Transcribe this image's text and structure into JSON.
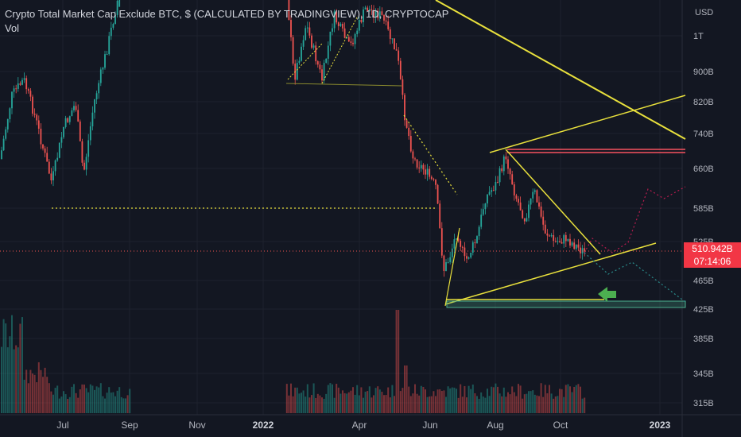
{
  "header": {
    "title": "Crypto Total Market Cap Exclude BTC, $ (CALCULATED BY TRADINGVIEW), 1D, CRYPTOCAP",
    "indicator": "Vol"
  },
  "price_badge": {
    "value": "510.942B",
    "countdown": "07:14:06"
  },
  "colors": {
    "background": "#131722",
    "up": "#26a69a",
    "down": "#ef5350",
    "trendline": "#e8e03c",
    "resistance": "#f7525f",
    "support_zone": "#4caf8f",
    "arrow": "#4caf50",
    "projection_red": "#b71c4f",
    "projection_teal": "#2a8b8b"
  },
  "chart_data": {
    "type": "candlestick",
    "title": "Crypto Total Market Cap Exclude BTC, $ (CALCULATED BY TRADINGVIEW), 1D, CRYPTOCAP",
    "currency": "USD",
    "y_scale": "log",
    "y_ticks": [
      "1T",
      "900B",
      "820B",
      "740B",
      "660B",
      "585B",
      "525B",
      "465B",
      "425B",
      "385B",
      "345B",
      "315B"
    ],
    "x_ticks": [
      "Jul",
      "Sep",
      "Nov",
      "2022",
      "Apr",
      "Jun",
      "Aug",
      "Oct",
      "2023"
    ],
    "last_price": "510.942B",
    "time_to_close": "07:14:06",
    "volume_indicator": "Vol",
    "grid": true
  }
}
